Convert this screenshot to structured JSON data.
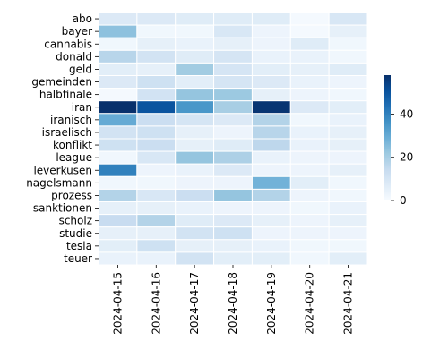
{
  "chart_data": {
    "type": "heatmap",
    "x": [
      "2024-04-15",
      "2024-04-16",
      "2024-04-17",
      "2024-04-18",
      "2024-04-19",
      "2024-04-20",
      "2024-04-21"
    ],
    "y": [
      "abo",
      "bayer",
      "cannabis",
      "donald",
      "geld",
      "gemeinden",
      "halbfinale",
      "iran",
      "iranisch",
      "israelisch",
      "konflikt",
      "league",
      "leverkusen",
      "nagelsmann",
      "prozess",
      "sanktionen",
      "scholz",
      "studie",
      "tesla",
      "teuer"
    ],
    "values": [
      [
        8,
        8,
        7,
        7,
        7,
        1,
        9
      ],
      [
        24,
        2,
        2,
        9,
        3,
        1,
        5
      ],
      [
        2,
        5,
        4,
        5,
        3,
        7,
        2
      ],
      [
        17,
        11,
        7,
        10,
        4,
        4,
        2
      ],
      [
        6,
        5,
        21,
        10,
        6,
        5,
        7
      ],
      [
        8,
        12,
        6,
        10,
        8,
        4,
        3
      ],
      [
        1,
        11,
        23,
        22,
        5,
        3,
        2
      ],
      [
        58,
        50,
        35,
        20,
        57,
        8,
        6
      ],
      [
        30,
        13,
        10,
        8,
        18,
        2,
        4
      ],
      [
        11,
        12,
        5,
        3,
        17,
        4,
        5
      ],
      [
        12,
        13,
        5,
        7,
        16,
        4,
        5
      ],
      [
        2,
        9,
        23,
        19,
        4,
        3,
        3
      ],
      [
        40,
        3,
        4,
        8,
        3,
        3,
        5
      ],
      [
        2,
        2,
        3,
        3,
        28,
        6,
        2
      ],
      [
        18,
        9,
        13,
        23,
        18,
        3,
        2
      ],
      [
        5,
        5,
        4,
        3,
        3,
        2,
        4
      ],
      [
        14,
        18,
        7,
        8,
        5,
        3,
        5
      ],
      [
        5,
        5,
        11,
        12,
        3,
        3,
        3
      ],
      [
        6,
        12,
        5,
        5,
        4,
        2,
        2
      ],
      [
        4,
        4,
        11,
        6,
        6,
        2,
        6
      ]
    ],
    "vmin": 0,
    "vmax": 58,
    "colormap": "Blues",
    "colorbar_ticks": [
      0,
      20,
      40
    ],
    "grid": true
  }
}
